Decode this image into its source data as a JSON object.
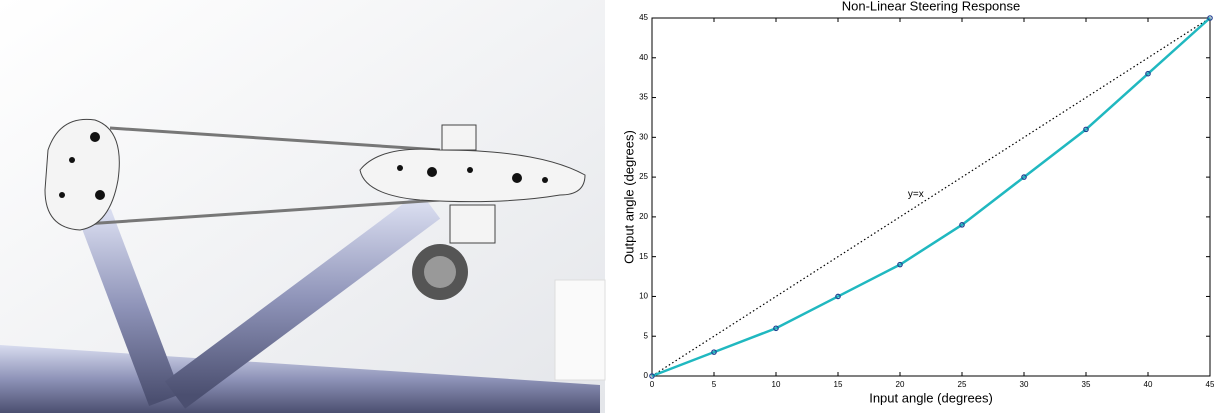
{
  "chart_data": {
    "type": "line",
    "title": "Non-Linear Steering Response",
    "x_label": "Input angle (degrees)",
    "y_label": "Output angle (degrees)",
    "x": [
      0,
      5,
      10,
      15,
      20,
      25,
      30,
      35,
      40,
      45
    ],
    "series": [
      {
        "values": [
          0,
          3,
          6,
          10,
          14,
          19,
          25,
          31,
          38,
          45
        ],
        "color": "#20b8c0",
        "marker_color": "#1f3f8f"
      }
    ],
    "reference_line": {
      "label": "y=x",
      "x": [
        0,
        45
      ],
      "y": [
        0,
        45
      ],
      "color": "#000000"
    },
    "xlim": [
      0,
      45
    ],
    "ylim": [
      0,
      45
    ],
    "xticks": [
      0,
      5,
      10,
      15,
      20,
      25,
      30,
      35,
      40,
      45
    ],
    "yticks": [
      0,
      5,
      10,
      15,
      20,
      25,
      30,
      35,
      40,
      45
    ]
  }
}
